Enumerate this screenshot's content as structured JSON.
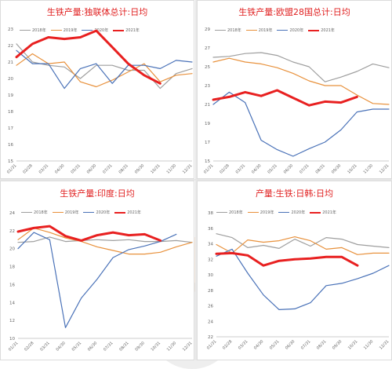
{
  "colors": {
    "2018": "#9e9e9e",
    "2019": "#e8913c",
    "2020": "#4a72b8",
    "2021": "#e82020",
    "title": "#e02020"
  },
  "legend_labels": [
    "2018年",
    "2019年",
    "2020年",
    "2021年"
  ],
  "chart_data": [
    {
      "type": "line",
      "title": "生铁产量:独联体总计:日均",
      "x_ticks": [
        "01/31",
        "02/28",
        "03/31",
        "04/30",
        "05/31",
        "06/30",
        "07/31",
        "08/31",
        "09/30",
        "10/31",
        "11/30",
        "12/31"
      ],
      "y_ticks": [
        "15",
        "16",
        "17",
        "18",
        "19",
        "20",
        "21",
        "22",
        "23"
      ],
      "ylim": [
        15,
        23
      ],
      "series": [
        {
          "name": "2018年",
          "values": [
            22.1,
            21.0,
            20.8,
            20.7,
            20.0,
            20.8,
            20.8,
            20.5,
            20.5,
            19.4,
            20.3,
            20.6
          ]
        },
        {
          "name": "2019年",
          "values": [
            20.8,
            21.5,
            20.9,
            21.0,
            19.8,
            19.5,
            19.9,
            20.4,
            20.9,
            19.8,
            20.2,
            20.3
          ]
        },
        {
          "name": "2020年",
          "values": [
            21.7,
            20.9,
            20.9,
            19.4,
            20.6,
            20.9,
            19.7,
            20.8,
            20.8,
            20.6,
            21.1,
            21.0
          ]
        },
        {
          "name": "2021年",
          "values": [
            21.3,
            22.1,
            22.5,
            22.4,
            22.5,
            22.9,
            21.9,
            20.9,
            20.2,
            19.7,
            null,
            null
          ]
        }
      ]
    },
    {
      "type": "line",
      "title": "生铁产量:欧盟28国总计:日均",
      "x_ticks": [
        "01/31",
        "02/28",
        "03/31",
        "04/30",
        "05/31",
        "06/30",
        "07/31",
        "08/31",
        "09/30",
        "10/31",
        "11/30",
        "12/31"
      ],
      "y_ticks": [
        "15",
        "17",
        "19",
        "21",
        "23",
        "25",
        "27",
        "29"
      ],
      "ylim": [
        15,
        29
      ],
      "series": [
        {
          "name": "2018年",
          "values": [
            26.0,
            26.1,
            26.4,
            26.5,
            26.2,
            25.5,
            25.0,
            23.4,
            23.9,
            24.5,
            25.3,
            24.9
          ]
        },
        {
          "name": "2019年",
          "values": [
            25.5,
            25.9,
            25.5,
            25.3,
            24.9,
            24.3,
            23.5,
            23.0,
            23.0,
            22.0,
            21.1,
            21.0
          ]
        },
        {
          "name": "2020年",
          "values": [
            21.0,
            22.3,
            21.2,
            17.2,
            16.2,
            15.5,
            16.3,
            17.0,
            18.3,
            20.2,
            20.5,
            20.5
          ]
        },
        {
          "name": "2021年",
          "values": [
            21.5,
            21.8,
            22.3,
            21.9,
            22.5,
            21.7,
            20.9,
            21.3,
            21.2,
            21.8,
            null,
            null
          ]
        }
      ]
    },
    {
      "type": "line",
      "title": "生铁产量:印度:日均",
      "x_ticks": [
        "01/31",
        "02/28",
        "03/31",
        "04/30",
        "05/31",
        "06/30",
        "07/31",
        "08/31",
        "09/30",
        "10/31",
        "11/30",
        "12/31"
      ],
      "y_ticks": [
        "10",
        "12",
        "14",
        "16",
        "18",
        "20",
        "22",
        "24"
      ],
      "ylim": [
        10,
        24
      ],
      "series": [
        {
          "name": "2018年",
          "values": [
            20.7,
            20.8,
            21.3,
            20.8,
            20.9,
            21.0,
            20.9,
            21.0,
            20.8,
            20.8,
            20.9,
            20.7
          ]
        },
        {
          "name": "2019年",
          "values": [
            21.0,
            22.3,
            21.8,
            21.2,
            20.8,
            20.2,
            19.8,
            19.4,
            19.4,
            19.6,
            20.2,
            20.7
          ]
        },
        {
          "name": "2020年",
          "values": [
            20.0,
            21.8,
            21.0,
            11.2,
            14.5,
            16.6,
            19.0,
            19.9,
            20.3,
            20.8,
            21.6,
            null
          ]
        },
        {
          "name": "2021年",
          "values": [
            21.9,
            22.3,
            22.5,
            21.4,
            20.9,
            21.5,
            21.8,
            21.5,
            21.6,
            20.9,
            null,
            null
          ]
        }
      ]
    },
    {
      "type": "line",
      "title": "产量:生铁:日韩:日均",
      "x_ticks": [
        "01/31",
        "02/28",
        "03/31",
        "04/30",
        "05/31",
        "06/30",
        "07/31",
        "08/31",
        "09/30",
        "10/31",
        "11/30",
        "12/31"
      ],
      "y_ticks": [
        "22",
        "24",
        "26",
        "28",
        "30",
        "32",
        "34",
        "36",
        "38"
      ],
      "ylim": [
        22,
        38
      ],
      "series": [
        {
          "name": "2018年",
          "values": [
            35.3,
            34.8,
            33.5,
            33.8,
            33.4,
            34.6,
            33.7,
            34.8,
            34.6,
            33.9,
            33.7,
            33.5
          ]
        },
        {
          "name": "2019年",
          "values": [
            33.9,
            32.8,
            34.5,
            34.2,
            34.4,
            34.9,
            34.4,
            33.3,
            33.5,
            32.6,
            32.8,
            32.8
          ]
        },
        {
          "name": "2020年",
          "values": [
            32.4,
            33.3,
            30.2,
            27.4,
            25.5,
            25.6,
            26.4,
            28.6,
            28.9,
            29.5,
            30.2,
            31.2
          ]
        },
        {
          "name": "2021年",
          "values": [
            32.7,
            32.8,
            32.5,
            31.2,
            31.8,
            32.0,
            32.1,
            32.3,
            32.3,
            31.2,
            null,
            null
          ]
        }
      ]
    }
  ]
}
